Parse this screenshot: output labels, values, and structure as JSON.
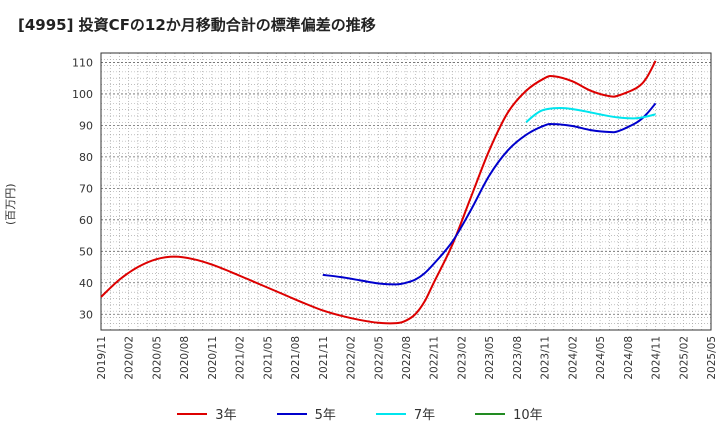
{
  "chart_data": {
    "type": "line",
    "title": "[4995]  投資CFの12か月移動合計の標準偏差の推移",
    "ylabel": "(百万円)",
    "ylim": [
      25,
      113
    ],
    "yticks": [
      30,
      40,
      50,
      60,
      70,
      80,
      90,
      100,
      110
    ],
    "xticks": [
      "2019/11",
      "2020/02",
      "2020/05",
      "2020/08",
      "2020/11",
      "2021/02",
      "2021/05",
      "2021/08",
      "2021/11",
      "2022/02",
      "2022/05",
      "2022/08",
      "2022/11",
      "2023/02",
      "2023/05",
      "2023/08",
      "2023/11",
      "2024/02",
      "2024/05",
      "2024/08",
      "2024/11",
      "2025/02",
      "2025/05"
    ],
    "grid": true,
    "legend_position": "bottom",
    "series": [
      {
        "name": "3年",
        "color": "#dd0000",
        "points": [
          [
            "2019/11",
            35.5
          ],
          [
            "2020/01",
            41
          ],
          [
            "2020/03",
            45
          ],
          [
            "2020/05",
            47.5
          ],
          [
            "2020/07",
            48.3
          ],
          [
            "2020/09",
            47.5
          ],
          [
            "2020/11",
            45.8
          ],
          [
            "2021/01",
            43.5
          ],
          [
            "2021/03",
            41
          ],
          [
            "2021/05",
            38.5
          ],
          [
            "2021/07",
            36
          ],
          [
            "2021/09",
            33.5
          ],
          [
            "2021/11",
            31.2
          ],
          [
            "2022/01",
            29.5
          ],
          [
            "2022/03",
            28.2
          ],
          [
            "2022/05",
            27.3
          ],
          [
            "2022/07",
            27.2
          ],
          [
            "2022/08",
            28
          ],
          [
            "2022/09",
            30
          ],
          [
            "2022/10",
            34
          ],
          [
            "2022/11",
            40
          ],
          [
            "2023/01",
            52
          ],
          [
            "2023/03",
            67
          ],
          [
            "2023/05",
            82
          ],
          [
            "2023/07",
            94
          ],
          [
            "2023/09",
            101
          ],
          [
            "2023/11",
            105
          ],
          [
            "2023/12",
            105.6
          ],
          [
            "2024/02",
            104
          ],
          [
            "2024/04",
            101
          ],
          [
            "2024/06",
            99.3
          ],
          [
            "2024/07",
            99.5
          ],
          [
            "2024/09",
            102
          ],
          [
            "2024/10",
            105
          ],
          [
            "2024/11",
            110.5
          ]
        ]
      },
      {
        "name": "5年",
        "color": "#0000cc",
        "points": [
          [
            "2021/11",
            42.5
          ],
          [
            "2022/01",
            41.8
          ],
          [
            "2022/03",
            40.8
          ],
          [
            "2022/05",
            39.8
          ],
          [
            "2022/07",
            39.5
          ],
          [
            "2022/08",
            40
          ],
          [
            "2022/09",
            41
          ],
          [
            "2022/10",
            43
          ],
          [
            "2022/11",
            46
          ],
          [
            "2023/01",
            53
          ],
          [
            "2023/03",
            63
          ],
          [
            "2023/05",
            74
          ],
          [
            "2023/07",
            82
          ],
          [
            "2023/09",
            87
          ],
          [
            "2023/11",
            90
          ],
          [
            "2023/12",
            90.4
          ],
          [
            "2024/02",
            89.8
          ],
          [
            "2024/04",
            88.5
          ],
          [
            "2024/06",
            87.9
          ],
          [
            "2024/07",
            88.2
          ],
          [
            "2024/09",
            91
          ],
          [
            "2024/10",
            93.5
          ],
          [
            "2024/11",
            97
          ]
        ]
      },
      {
        "name": "7年",
        "color": "#00e5ee",
        "points": [
          [
            "2023/09",
            91
          ],
          [
            "2023/10",
            93.5
          ],
          [
            "2023/11",
            95
          ],
          [
            "2024/01",
            95.5
          ],
          [
            "2024/03",
            94.7
          ],
          [
            "2024/05",
            93.5
          ],
          [
            "2024/07",
            92.5
          ],
          [
            "2024/09",
            92.3
          ],
          [
            "2024/11",
            93.5
          ]
        ]
      },
      {
        "name": "10年",
        "color": "#228b22",
        "points": []
      }
    ]
  }
}
